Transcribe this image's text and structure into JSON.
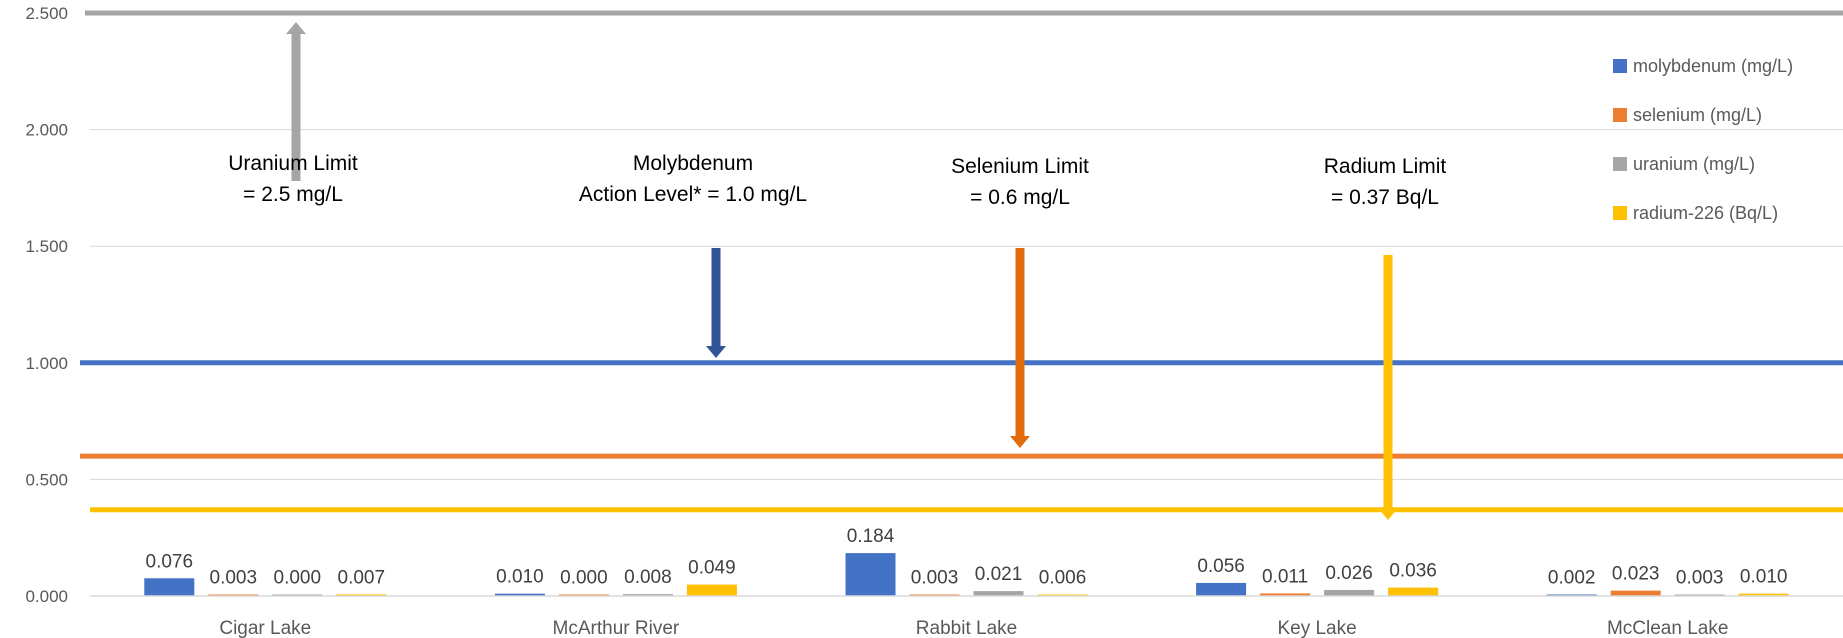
{
  "chart_data": {
    "type": "bar",
    "categories": [
      "Cigar Lake",
      "McArthur River",
      "Rabbit Lake",
      "Key Lake",
      "McClean Lake"
    ],
    "series": [
      {
        "name": "molybdenum (mg/L)",
        "color": "#4472C4",
        "values": [
          0.076,
          0.01,
          0.184,
          0.056,
          0.002
        ],
        "labels": [
          "0.076",
          "0.010",
          "0.184",
          "0.056",
          "0.002"
        ]
      },
      {
        "name": "selenium (mg/L)",
        "color": "#ED7D31",
        "values": [
          0.003,
          0.0,
          0.003,
          0.011,
          0.023
        ],
        "labels": [
          "0.003",
          "0.000",
          "0.003",
          "0.011",
          "0.023"
        ]
      },
      {
        "name": "uranium (mg/L)",
        "color": "#A5A5A5",
        "values": [
          0.0,
          0.008,
          0.021,
          0.026,
          0.003
        ],
        "labels": [
          "0.000",
          "0.008",
          "0.021",
          "0.026",
          "0.003"
        ]
      },
      {
        "name": "radium-226 (Bq/L)",
        "color": "#FFC000",
        "values": [
          0.007,
          0.049,
          0.006,
          0.036,
          0.01
        ],
        "labels": [
          "0.007",
          "0.049",
          "0.006",
          "0.036",
          "0.010"
        ]
      }
    ],
    "ylim": [
      0,
      2.5
    ],
    "yticks": [
      "0.000",
      "0.500",
      "1.000",
      "1.500",
      "2.000",
      "2.500"
    ],
    "grid": true,
    "legend_position": "right",
    "reference_lines": [
      {
        "id": "uranium-limit",
        "value": 2.5,
        "color": "#A5A5A5",
        "arrow_color": "#A5A5A5",
        "lines": [
          "Uranium Limit",
          "= 2.5 mg/L"
        ]
      },
      {
        "id": "molybdenum-limit",
        "value": 1.0,
        "color": "#4472C4",
        "arrow_color": "#2F5597",
        "lines": [
          "Molybdenum",
          "Action Level* = 1.0 mg/L"
        ]
      },
      {
        "id": "selenium-limit",
        "value": 0.6,
        "color": "#ED7D31",
        "arrow_color": "#E36C0A",
        "lines": [
          "Selenium Limit",
          "= 0.6 mg/L"
        ]
      },
      {
        "id": "radium-limit",
        "value": 0.37,
        "color": "#FFC000",
        "arrow_color": "#FFC000",
        "lines": [
          "Radium Limit",
          "= 0.37 Bq/L"
        ]
      }
    ]
  }
}
